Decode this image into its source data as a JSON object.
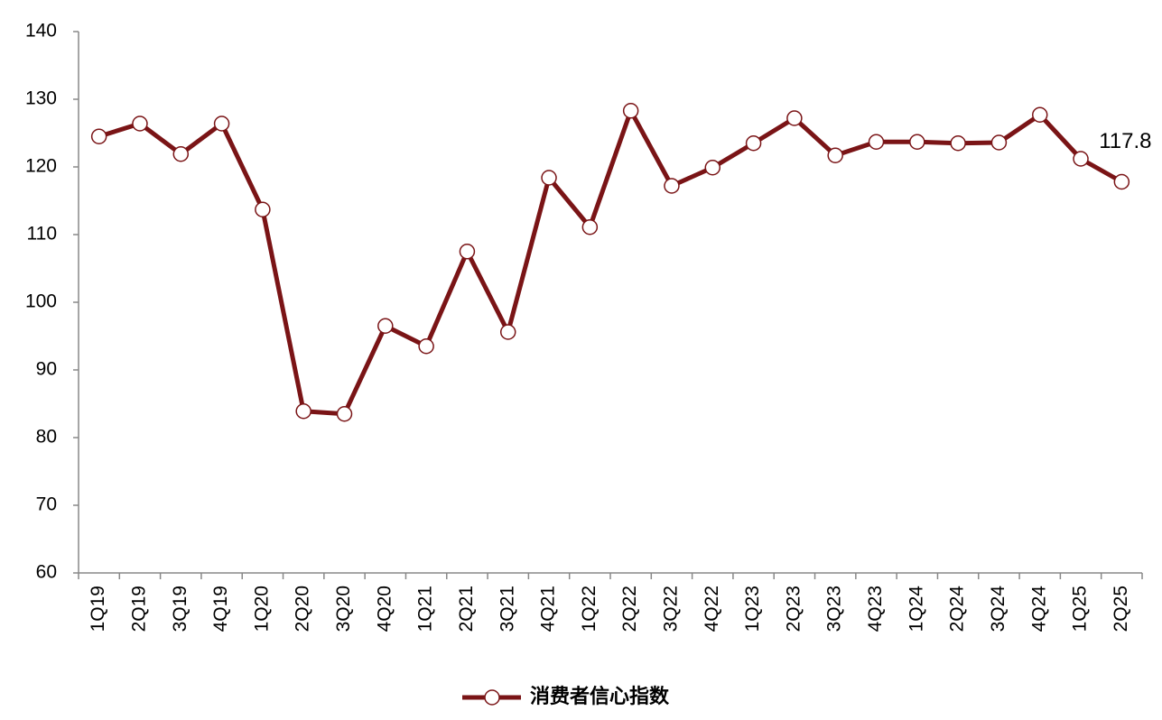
{
  "chart_data": {
    "type": "line",
    "categories": [
      "1Q19",
      "2Q19",
      "3Q19",
      "4Q19",
      "1Q20",
      "2Q20",
      "3Q20",
      "4Q20",
      "1Q21",
      "2Q21",
      "3Q21",
      "4Q21",
      "1Q22",
      "2Q22",
      "3Q22",
      "4Q22",
      "1Q23",
      "2Q23",
      "3Q23",
      "4Q23",
      "1Q24",
      "2Q24",
      "3Q24",
      "4Q24",
      "1Q25",
      "2Q25"
    ],
    "series": [
      {
        "name": "消费者信心指数",
        "color": "#7a1416",
        "values": [
          124.5,
          126.4,
          121.9,
          126.4,
          113.7,
          83.9,
          83.5,
          96.5,
          93.5,
          107.5,
          95.6,
          118.4,
          111.1,
          128.3,
          117.2,
          119.9,
          123.5,
          127.2,
          121.7,
          123.7,
          123.7,
          123.5,
          123.6,
          127.7,
          121.2,
          117.8
        ],
        "value_labels": [
          null,
          null,
          null,
          null,
          null,
          null,
          null,
          null,
          null,
          null,
          null,
          null,
          null,
          null,
          null,
          null,
          null,
          null,
          null,
          null,
          null,
          null,
          null,
          null,
          null,
          "117.8"
        ]
      }
    ],
    "ylim": [
      60,
      140
    ],
    "yticks": [
      60,
      70,
      80,
      90,
      100,
      110,
      120,
      130,
      140
    ],
    "grid": false,
    "legend": "bottom"
  }
}
